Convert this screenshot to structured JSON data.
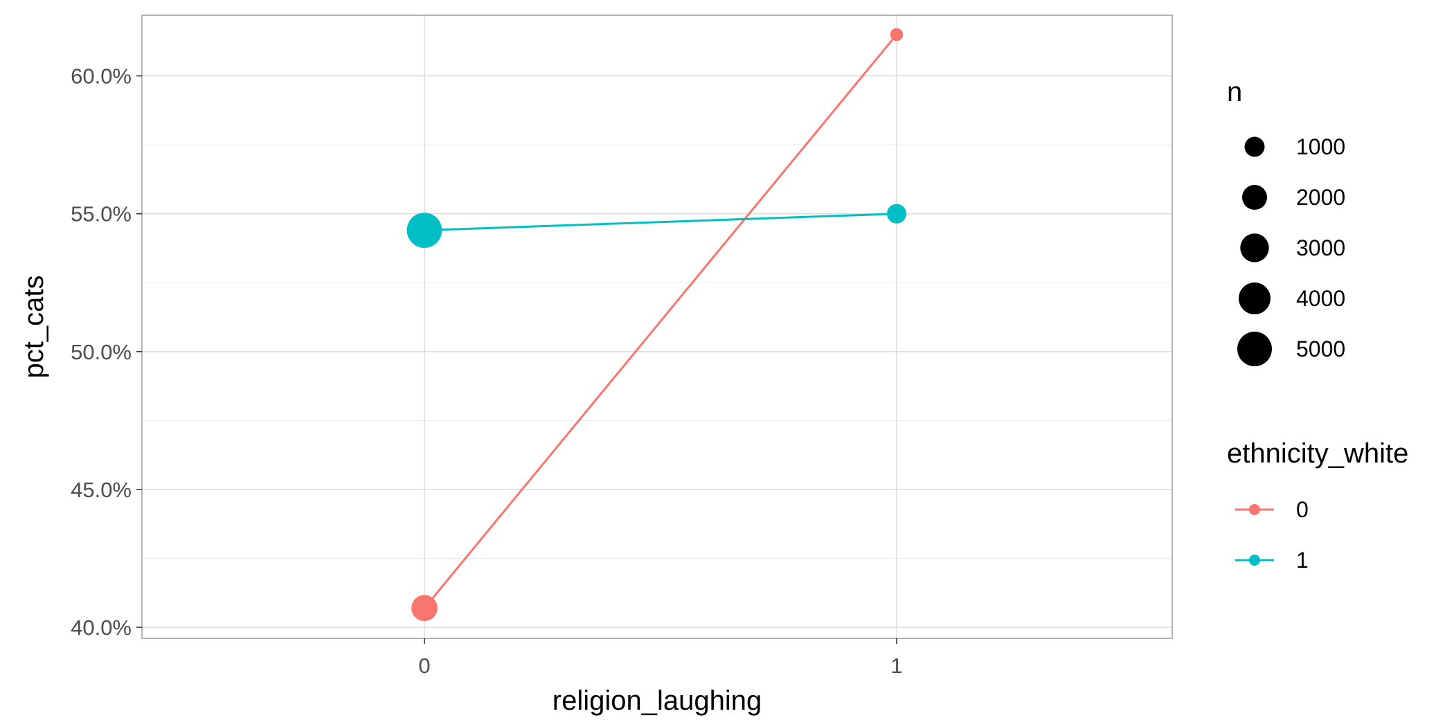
{
  "chart_data": {
    "type": "line",
    "x_categories": [
      "0",
      "1"
    ],
    "xlabel": "religion_laughing",
    "ylabel": "pct_cats",
    "ylim": [
      0.396,
      0.622
    ],
    "y_ticks": [
      0.4,
      0.45,
      0.5,
      0.55,
      0.6
    ],
    "y_tick_labels": [
      "40.0%",
      "45.0%",
      "50.0%",
      "55.0%",
      "60.0%"
    ],
    "grid": true,
    "size_legend": {
      "title": "n",
      "labels": [
        "1000",
        "2000",
        "3000",
        "4000",
        "5000"
      ],
      "values": [
        1000,
        2000,
        3000,
        4000,
        5000
      ]
    },
    "color_legend": {
      "title": "ethnicity_white",
      "placement": "right"
    },
    "series": [
      {
        "name": "0",
        "color": "#F8766D",
        "x": [
          "0",
          "1"
        ],
        "y": [
          0.407,
          0.615
        ],
        "n": [
          2300,
          150
        ]
      },
      {
        "name": "1",
        "color": "#00BFC4",
        "x": [
          "0",
          "1"
        ],
        "y": [
          0.544,
          0.55
        ],
        "n": [
          5200,
          900
        ]
      }
    ]
  }
}
